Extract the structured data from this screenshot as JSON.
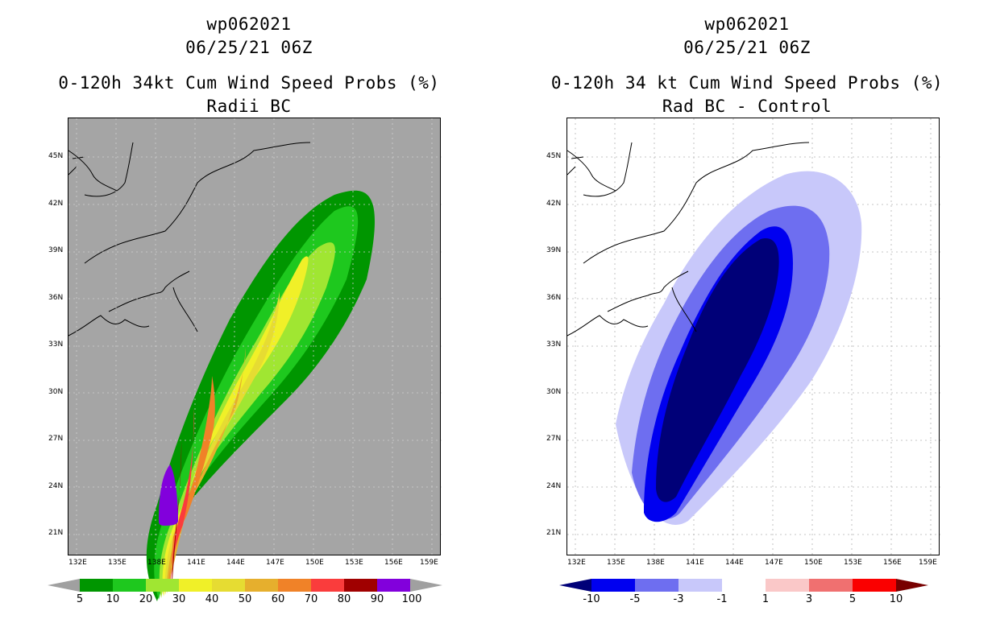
{
  "chart_data": [
    {
      "type": "filled-contour-map",
      "storm": "wp062021",
      "datetime": "06/25/21 06Z",
      "title": "0-120h 34kt Cum Wind Speed Probs (%)",
      "subtitle": "Radii BC",
      "x_ticks": [
        "132E",
        "135E",
        "138E",
        "141E",
        "144E",
        "147E",
        "150E",
        "153E",
        "156E",
        "159E"
      ],
      "y_ticks": [
        "45N",
        "42N",
        "39N",
        "36N",
        "33N",
        "30N",
        "27N",
        "24N",
        "21N"
      ],
      "colorbar": {
        "labels": [
          "5",
          "10",
          "20",
          "30",
          "40",
          "50",
          "60",
          "70",
          "80",
          "90",
          "100"
        ],
        "colors": [
          "#009600",
          "#1ec81e",
          "#a0e632",
          "#f0f028",
          "#e6dc32",
          "#e6af2d",
          "#f08228",
          "#fa3c3c",
          "#a00000",
          "#8200dc"
        ],
        "end_colors": [
          "#a0a0a0",
          "#a0a0a0"
        ]
      },
      "background": "#a5a5a5"
    },
    {
      "type": "filled-contour-map",
      "storm": "wp062021",
      "datetime": "06/25/21 06Z",
      "title": "0-120h 34 kt Cum Wind Speed Probs (%)",
      "subtitle": "Rad BC - Control",
      "x_ticks": [
        "132E",
        "135E",
        "138E",
        "141E",
        "144E",
        "147E",
        "150E",
        "153E",
        "156E",
        "159E"
      ],
      "y_ticks": [
        "45N",
        "42N",
        "39N",
        "36N",
        "33N",
        "30N",
        "27N",
        "24N",
        "21N"
      ],
      "colorbar": {
        "labels": [
          "-10",
          "-5",
          "-3",
          "-1",
          "1",
          "3",
          "5",
          "10"
        ],
        "colors": [
          "#0000f0",
          "#6e6ef0",
          "#c8c8fa",
          "#ffffff",
          "#fac8c8",
          "#f07070",
          "#fa0000"
        ],
        "end_colors": [
          "#000078",
          "#780000"
        ]
      },
      "background": "#ffffff"
    }
  ]
}
